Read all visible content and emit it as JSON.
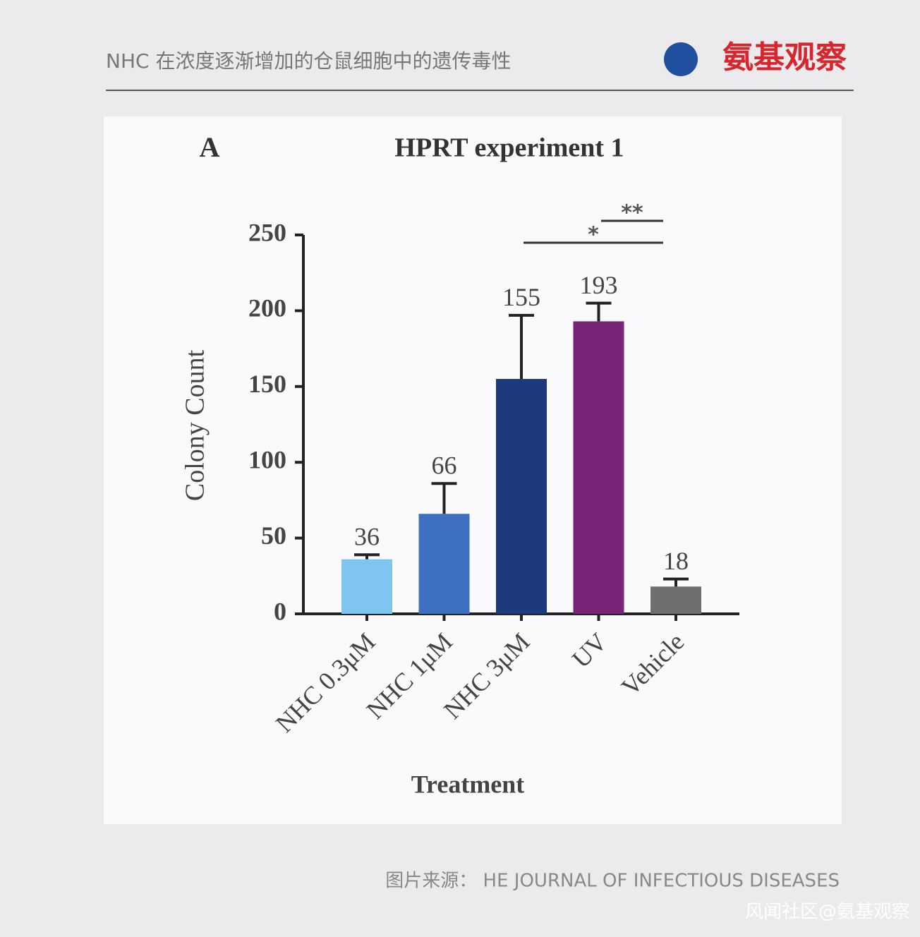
{
  "header": {
    "title": "NHC 在浓度逐渐增加的仓鼠细胞中的遗传毒性",
    "logo": "氨基观察"
  },
  "chart_data": {
    "type": "bar",
    "panel": "A",
    "title": "HPRT experiment 1",
    "x_label": "Treatment",
    "y_label": "Colony Count",
    "categories": [
      "NHC 0.3μM",
      "NHC 1μM",
      "NHC 3μM",
      "UV",
      "Vehicle"
    ],
    "values": [
      36,
      66,
      155,
      193,
      18
    ],
    "errors": [
      3,
      20,
      42,
      12,
      5
    ],
    "colors": [
      "#7ec6ef",
      "#3e70bf",
      "#1d3a7e",
      "#7a2477",
      "#6e6e6e"
    ],
    "ylim": [
      0,
      250
    ],
    "yticks": [
      0,
      50,
      100,
      150,
      200,
      250
    ],
    "annotations": [
      {
        "text": "*",
        "span": [
          2,
          4
        ]
      },
      {
        "text": "**",
        "span": [
          3,
          4
        ]
      }
    ]
  },
  "footer": {
    "source": "图片来源：  HE JOURNAL OF INFECTIOUS DISEASES",
    "watermark": "风闻社区@氨基观察"
  }
}
